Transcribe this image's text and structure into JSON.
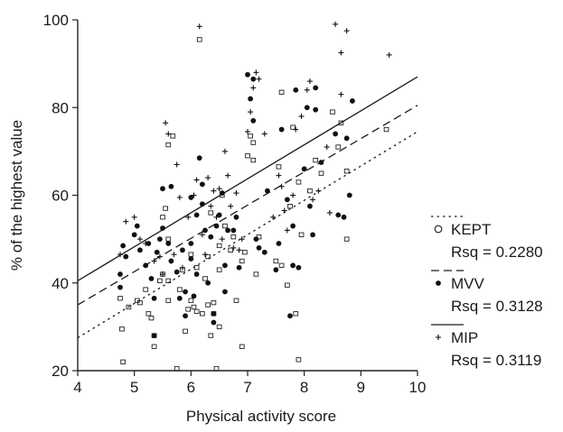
{
  "chart_data": {
    "type": "scatter",
    "title": "",
    "xlabel": "Physical activity score",
    "ylabel": "% of the highest value",
    "xlim": [
      4,
      10
    ],
    "ylim": [
      20,
      100
    ],
    "x_ticks": [
      4,
      5,
      6,
      7,
      8,
      9,
      10
    ],
    "y_ticks": [
      20,
      40,
      60,
      80,
      100
    ],
    "x_tick_labels": [
      "4",
      "5",
      "6",
      "7",
      "8",
      "9",
      "10"
    ],
    "y_tick_labels": [
      "20",
      "40",
      "60",
      "80",
      "100"
    ],
    "grid": false,
    "legend_position": "right",
    "series": [
      {
        "name": "KEPT",
        "marker": "open-square",
        "line_style": "dotted",
        "rsq_label": "Rsq = 0.2280",
        "fit": {
          "x0": 4,
          "y0": 27.5,
          "x1": 10,
          "y1": 74.5
        },
        "points": [
          [
            4.75,
            36.5
          ],
          [
            4.78,
            29.5
          ],
          [
            4.8,
            22
          ],
          [
            4.9,
            34.5
          ],
          [
            5.05,
            36
          ],
          [
            5.1,
            35.5
          ],
          [
            5.2,
            38.5
          ],
          [
            5.25,
            33
          ],
          [
            5.3,
            32
          ],
          [
            5.35,
            28
          ],
          [
            5.35,
            25.5
          ],
          [
            5.45,
            40.5
          ],
          [
            5.5,
            42
          ],
          [
            5.5,
            55
          ],
          [
            5.55,
            57
          ],
          [
            5.6,
            50
          ],
          [
            5.6,
            36
          ],
          [
            5.6,
            40.5
          ],
          [
            5.6,
            71.5
          ],
          [
            5.68,
            73.5
          ],
          [
            5.75,
            20.5
          ],
          [
            5.8,
            38.5
          ],
          [
            5.85,
            43
          ],
          [
            5.9,
            29
          ],
          [
            5.95,
            34
          ],
          [
            6.0,
            36
          ],
          [
            6.0,
            46.5
          ],
          [
            6.05,
            34.5
          ],
          [
            6.1,
            43.5
          ],
          [
            6.1,
            33.5
          ],
          [
            6.15,
            95.5
          ],
          [
            6.2,
            33
          ],
          [
            6.25,
            41
          ],
          [
            6.3,
            46
          ],
          [
            6.3,
            35
          ],
          [
            6.35,
            28
          ],
          [
            6.35,
            56
          ],
          [
            6.4,
            33
          ],
          [
            6.4,
            35.5
          ],
          [
            6.45,
            20.5
          ],
          [
            6.5,
            30
          ],
          [
            6.5,
            43
          ],
          [
            6.5,
            48.5
          ],
          [
            6.55,
            60
          ],
          [
            6.6,
            53
          ],
          [
            6.7,
            47.5
          ],
          [
            6.75,
            50.5
          ],
          [
            6.8,
            36
          ],
          [
            6.9,
            25.5
          ],
          [
            6.9,
            45
          ],
          [
            6.95,
            47
          ],
          [
            7.0,
            69
          ],
          [
            7.05,
            73.5
          ],
          [
            7.1,
            72
          ],
          [
            7.1,
            68
          ],
          [
            7.15,
            42
          ],
          [
            7.2,
            50.5
          ],
          [
            7.5,
            45
          ],
          [
            7.55,
            66.5
          ],
          [
            7.6,
            83.5
          ],
          [
            7.6,
            44
          ],
          [
            7.7,
            39.5
          ],
          [
            7.75,
            57.5
          ],
          [
            7.8,
            75.5
          ],
          [
            7.85,
            33
          ],
          [
            7.9,
            22.5
          ],
          [
            7.9,
            63
          ],
          [
            7.95,
            51
          ],
          [
            8.1,
            61
          ],
          [
            8.2,
            68
          ],
          [
            8.3,
            65
          ],
          [
            8.5,
            79
          ],
          [
            8.6,
            71
          ],
          [
            8.65,
            76.5
          ],
          [
            8.75,
            65.5
          ],
          [
            8.75,
            50
          ],
          [
            9.45,
            75
          ]
        ]
      },
      {
        "name": "MVV",
        "marker": "filled-circle",
        "line_style": "dashed",
        "rsq_label": "Rsq = 0.3128",
        "fit": {
          "x0": 4,
          "y0": 35,
          "x1": 10,
          "y1": 80.5
        },
        "points": [
          [
            4.75,
            39
          ],
          [
            4.75,
            42
          ],
          [
            4.8,
            48.5
          ],
          [
            4.85,
            46
          ],
          [
            5.0,
            51
          ],
          [
            5.05,
            53
          ],
          [
            5.1,
            47.5
          ],
          [
            5.2,
            44
          ],
          [
            5.25,
            49
          ],
          [
            5.3,
            41
          ],
          [
            5.35,
            36.5
          ],
          [
            5.35,
            28
          ],
          [
            5.4,
            47
          ],
          [
            5.45,
            50
          ],
          [
            5.5,
            52.5
          ],
          [
            5.5,
            61.5
          ],
          [
            5.6,
            49
          ],
          [
            5.65,
            62
          ],
          [
            5.65,
            45
          ],
          [
            5.75,
            42.5
          ],
          [
            5.8,
            36.5
          ],
          [
            5.85,
            47.5
          ],
          [
            5.9,
            38
          ],
          [
            5.9,
            32.5
          ],
          [
            6.0,
            49
          ],
          [
            6.0,
            59.5
          ],
          [
            6.0,
            45.5
          ],
          [
            6.05,
            37
          ],
          [
            6.1,
            55.5
          ],
          [
            6.1,
            42
          ],
          [
            6.15,
            68.5
          ],
          [
            6.2,
            62.5
          ],
          [
            6.2,
            58
          ],
          [
            6.25,
            52
          ],
          [
            6.3,
            40
          ],
          [
            6.35,
            50.5
          ],
          [
            6.4,
            31
          ],
          [
            6.4,
            33
          ],
          [
            6.45,
            53
          ],
          [
            6.5,
            55.5
          ],
          [
            6.55,
            60.5
          ],
          [
            6.6,
            44
          ],
          [
            6.6,
            38
          ],
          [
            6.65,
            52
          ],
          [
            6.75,
            52
          ],
          [
            6.8,
            55
          ],
          [
            6.85,
            43.5
          ],
          [
            7.0,
            87.5
          ],
          [
            7.05,
            82
          ],
          [
            7.1,
            77
          ],
          [
            7.1,
            86.5
          ],
          [
            7.15,
            50
          ],
          [
            7.2,
            48
          ],
          [
            7.3,
            47
          ],
          [
            7.35,
            61
          ],
          [
            7.5,
            43
          ],
          [
            7.55,
            49
          ],
          [
            7.6,
            75
          ],
          [
            7.7,
            59
          ],
          [
            7.75,
            32.5
          ],
          [
            7.8,
            53
          ],
          [
            7.8,
            44
          ],
          [
            7.85,
            84
          ],
          [
            7.9,
            43.5
          ],
          [
            8.0,
            66
          ],
          [
            8.05,
            80
          ],
          [
            8.1,
            57.5
          ],
          [
            8.15,
            51
          ],
          [
            8.2,
            79.5
          ],
          [
            8.2,
            84.5
          ],
          [
            8.3,
            67.5
          ],
          [
            8.55,
            74
          ],
          [
            8.6,
            55.5
          ],
          [
            8.7,
            55
          ],
          [
            8.75,
            73
          ],
          [
            8.8,
            60
          ],
          [
            8.85,
            81.5
          ]
        ]
      },
      {
        "name": "MIP",
        "marker": "plus",
        "line_style": "solid",
        "rsq_label": "Rsq = 0.3119",
        "fit": {
          "x0": 4,
          "y0": 40.5,
          "x1": 10,
          "y1": 87
        },
        "points": [
          [
            4.75,
            46.5
          ],
          [
            4.85,
            54
          ],
          [
            5.0,
            55
          ],
          [
            5.1,
            50
          ],
          [
            5.2,
            49
          ],
          [
            5.35,
            45
          ],
          [
            5.45,
            46
          ],
          [
            5.5,
            42
          ],
          [
            5.55,
            76.5
          ],
          [
            5.6,
            74
          ],
          [
            5.7,
            46.5
          ],
          [
            5.75,
            67
          ],
          [
            5.8,
            59.5
          ],
          [
            5.85,
            43.5
          ],
          [
            5.95,
            55
          ],
          [
            6.05,
            60
          ],
          [
            6.1,
            63.5
          ],
          [
            6.15,
            98.5
          ],
          [
            6.2,
            51
          ],
          [
            6.25,
            46.5
          ],
          [
            6.3,
            64
          ],
          [
            6.35,
            57.5
          ],
          [
            6.4,
            61
          ],
          [
            6.45,
            55
          ],
          [
            6.5,
            61.5
          ],
          [
            6.55,
            50
          ],
          [
            6.6,
            70
          ],
          [
            6.65,
            64.5
          ],
          [
            6.7,
            57.5
          ],
          [
            6.75,
            48
          ],
          [
            6.8,
            60.5
          ],
          [
            6.85,
            47.5
          ],
          [
            6.9,
            50
          ],
          [
            7.0,
            74.5
          ],
          [
            7.05,
            79
          ],
          [
            7.1,
            84.5
          ],
          [
            7.15,
            88
          ],
          [
            7.2,
            86.5
          ],
          [
            7.3,
            74
          ],
          [
            7.45,
            55
          ],
          [
            7.55,
            64.5
          ],
          [
            7.6,
            62
          ],
          [
            7.65,
            56.5
          ],
          [
            7.7,
            52
          ],
          [
            7.8,
            60
          ],
          [
            7.85,
            75
          ],
          [
            7.95,
            78
          ],
          [
            8.05,
            84
          ],
          [
            8.1,
            86
          ],
          [
            8.15,
            59
          ],
          [
            8.25,
            61
          ],
          [
            8.4,
            71
          ],
          [
            8.45,
            56
          ],
          [
            8.55,
            99
          ],
          [
            8.65,
            92.5
          ],
          [
            8.65,
            83
          ],
          [
            8.75,
            97.5
          ],
          [
            9.5,
            92
          ]
        ]
      }
    ]
  }
}
